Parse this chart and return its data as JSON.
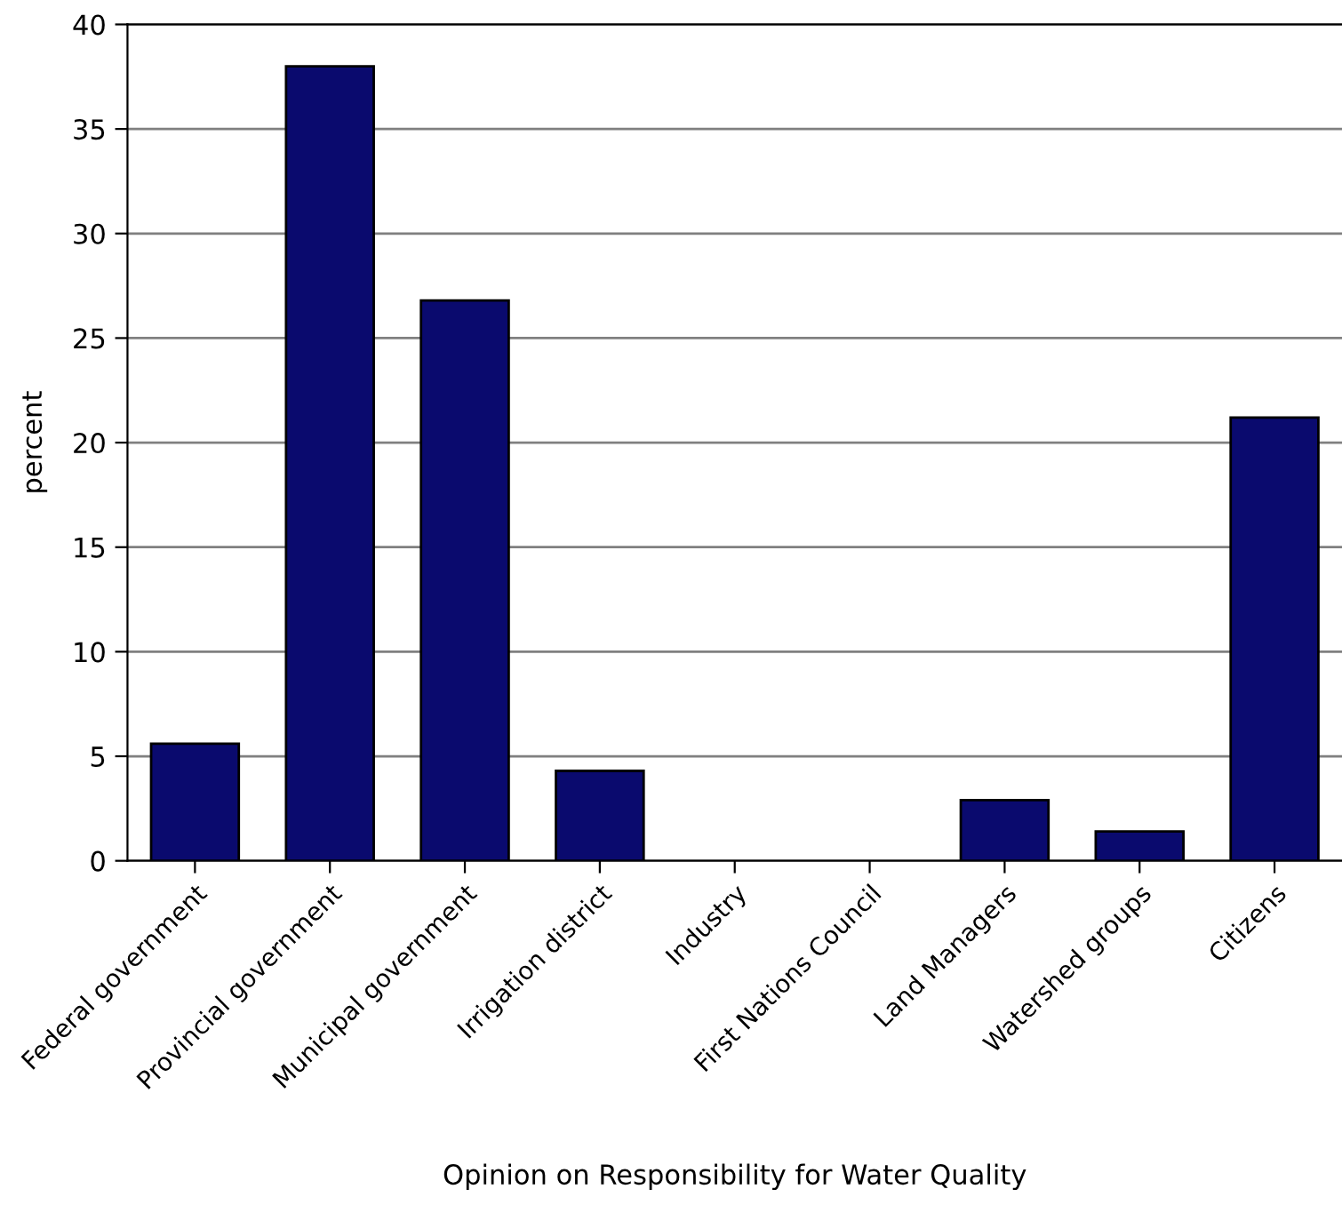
{
  "chart_data": {
    "type": "bar",
    "xlabel": "Opinion on Responsibility for Water Quality",
    "ylabel": "percent",
    "categories": [
      "Federal government",
      "Provincial government",
      "Municipal government",
      "Irrigation district",
      "Industry",
      "First Nations Council",
      "Land Managers",
      "Watershed groups",
      "Citizens"
    ],
    "values": [
      5.6,
      38.0,
      26.8,
      4.3,
      0,
      0,
      2.9,
      1.4,
      21.2
    ],
    "color": "#0a0a6e",
    "ylim": [
      0,
      40
    ],
    "yticks": [
      0,
      5,
      10,
      15,
      20,
      25,
      30,
      35,
      40
    ],
    "grid": "y"
  }
}
